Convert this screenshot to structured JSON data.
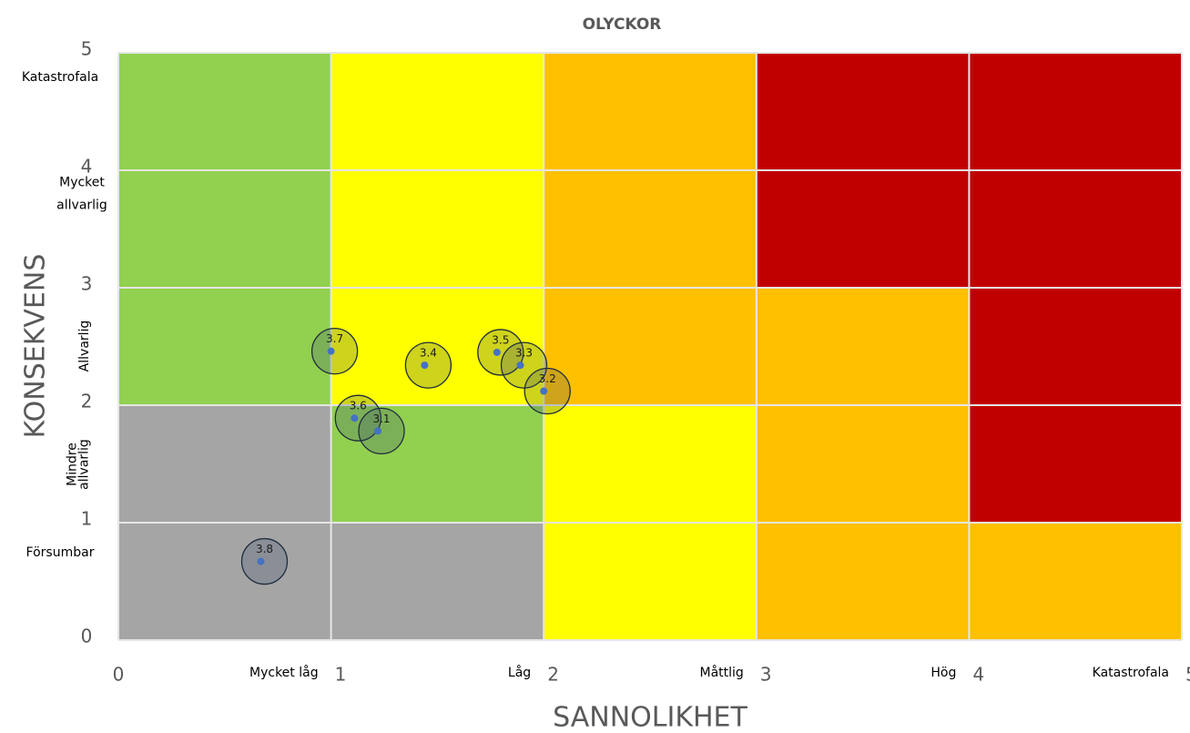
{
  "chart_data": {
    "type": "scatter",
    "title": "OLYCKOR",
    "x_label": "SANNOLIKHET",
    "y_label": "KONSEKVENS",
    "xlim": [
      0,
      5
    ],
    "ylim": [
      0,
      5
    ],
    "xticks": [
      0,
      1,
      2,
      3,
      4,
      5
    ],
    "yticks": [
      0,
      1,
      2,
      3,
      4,
      5
    ],
    "grid": true,
    "x_level_labels": [
      "Mycket låg",
      "Låg",
      "Måttlig",
      "Hög",
      "Katastrofala"
    ],
    "y_level_labels": [
      [
        "Försumbar"
      ],
      [
        "Mindre",
        "allvarlig"
      ],
      [
        "Allvarlig"
      ],
      [
        "Mycket",
        "allvarlig"
      ],
      [
        "Katastrofala"
      ]
    ],
    "cell_colors": [
      [
        "#a5a5a5",
        "#a5a5a5",
        "#ffff00",
        "#ffc000",
        "#ffc000"
      ],
      [
        "#a5a5a5",
        "#92d050",
        "#ffff00",
        "#ffc000",
        "#c00000"
      ],
      [
        "#92d050",
        "#ffff00",
        "#ffc000",
        "#ffc000",
        "#c00000"
      ],
      [
        "#92d050",
        "#ffff00",
        "#ffc000",
        "#c00000",
        "#c00000"
      ],
      [
        "#92d050",
        "#ffff00",
        "#ffc000",
        "#c00000",
        "#c00000"
      ]
    ],
    "point_color": "#4472c4",
    "labels": [
      "3.7",
      "3.4",
      "3.5",
      "3.3",
      "3.2",
      "3.6",
      "3.1",
      "3.8"
    ],
    "x": [
      1.0,
      1.44,
      1.78,
      1.89,
      2.0,
      1.11,
      1.22,
      0.67
    ],
    "values": [
      2.46,
      2.34,
      2.45,
      2.34,
      2.12,
      1.89,
      1.78,
      0.67
    ]
  }
}
